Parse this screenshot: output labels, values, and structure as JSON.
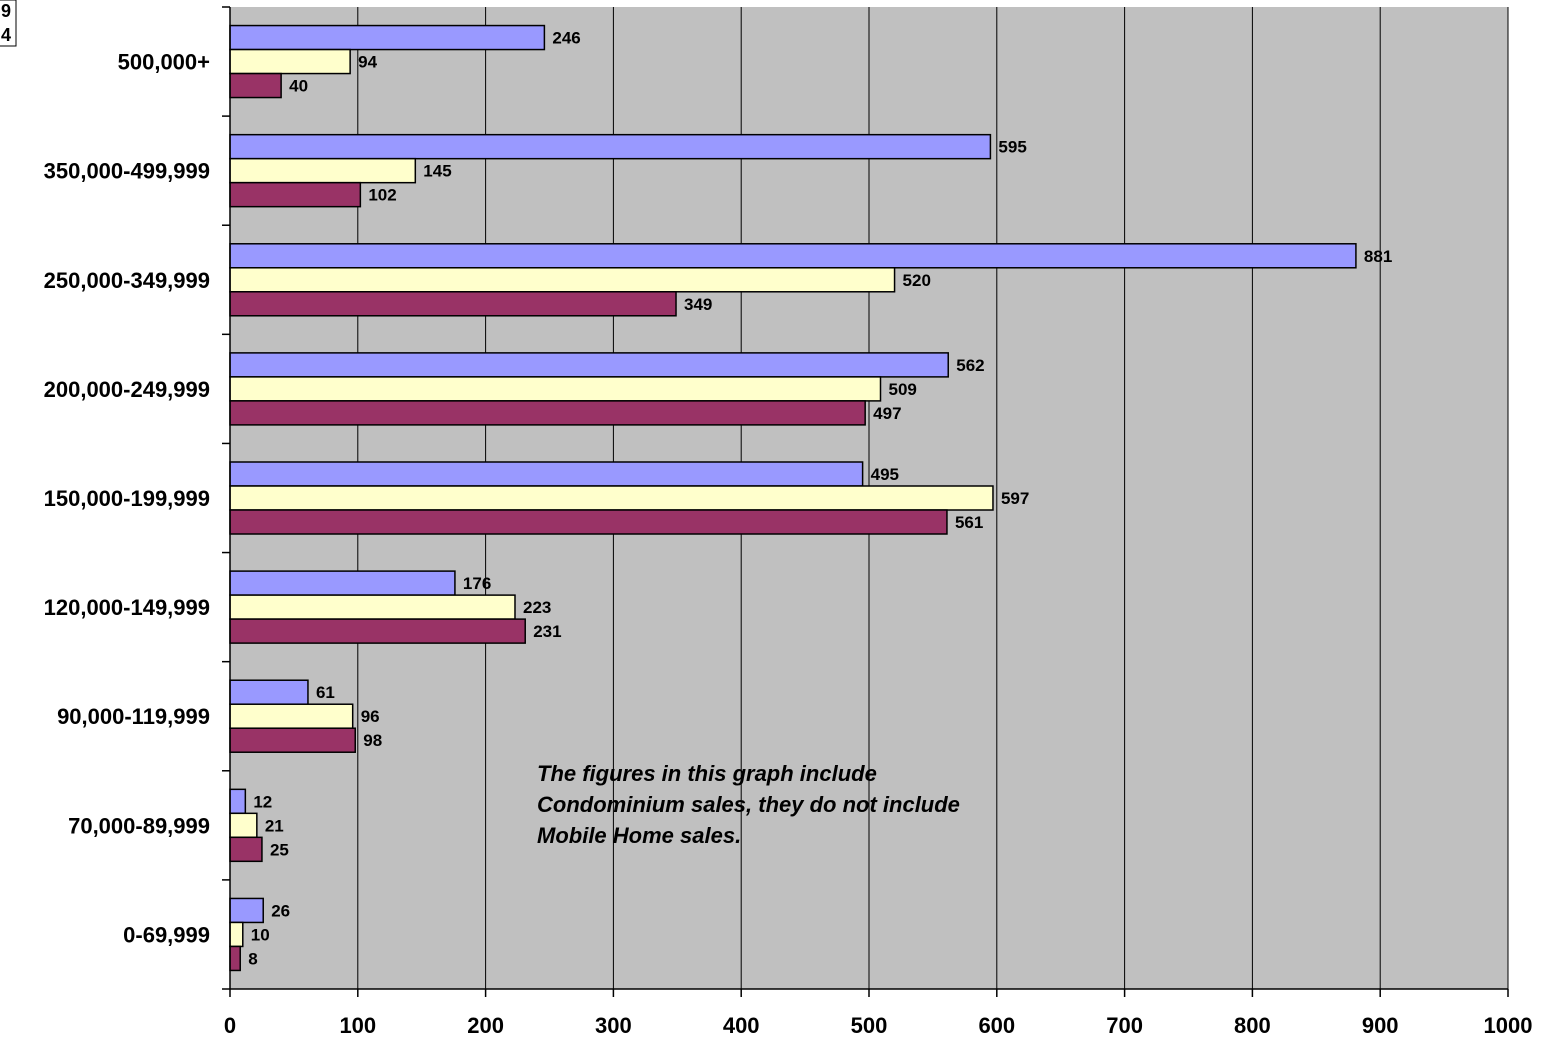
{
  "chart_data": {
    "type": "bar",
    "orientation": "horizontal",
    "categories": [
      "500,000+",
      "350,000-499,999",
      "250,000-349,999",
      "200,000-249,999",
      "150,000-199,999",
      "120,000-149,999",
      "90,000-119,999",
      "70,000-89,999",
      "0-69,999"
    ],
    "series": [
      {
        "color": "#9999ff",
        "values": [
          246,
          595,
          881,
          562,
          495,
          176,
          61,
          12,
          26
        ]
      },
      {
        "color": "#ffffcc",
        "values": [
          94,
          145,
          520,
          509,
          597,
          223,
          96,
          21,
          10
        ]
      },
      {
        "color": "#993366",
        "values": [
          40,
          102,
          349,
          497,
          561,
          231,
          98,
          25,
          8
        ]
      }
    ],
    "xlim": [
      0,
      1000
    ],
    "xticks": [
      "0",
      "100",
      "200",
      "300",
      "400",
      "500",
      "600",
      "700",
      "800",
      "900",
      "1000"
    ],
    "grid": true,
    "plot_background": "#c0c0c0",
    "legend_fragments": [
      "9",
      "4"
    ],
    "annotation": [
      "The figures in this graph include",
      "Condominium sales, they do not include",
      "Mobile Home sales."
    ]
  }
}
